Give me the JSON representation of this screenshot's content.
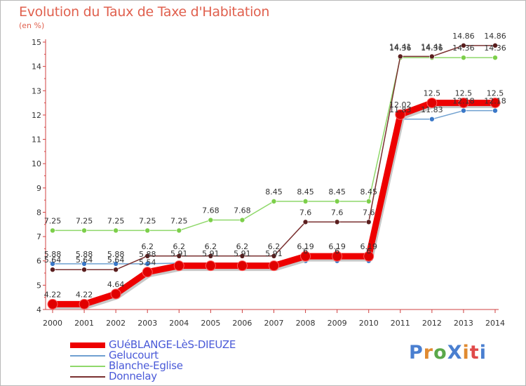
{
  "title": "Evolution du Taux de Taxe d'Habitation",
  "subtitle": "(en %)",
  "logo": {
    "text": "ProXiti",
    "colors": [
      "#4a7fd0",
      "#e08a30",
      "#5aa84a",
      "#4a7fd0",
      "#e08a30",
      "#e04a4a",
      "#4a7fd0"
    ]
  },
  "chart_data": {
    "type": "line",
    "title": "Evolution du Taux de Taxe d'Habitation",
    "ylabel": "(en %)",
    "xlabel": "",
    "x": [
      2000,
      2001,
      2002,
      2003,
      2004,
      2005,
      2006,
      2007,
      2008,
      2009,
      2010,
      2011,
      2012,
      2013,
      2014
    ],
    "ylim": [
      4,
      15
    ],
    "yticks": [
      4,
      5,
      6,
      7,
      8,
      9,
      10,
      11,
      12,
      13,
      14,
      15
    ],
    "grid": false,
    "legend_position": "bottom-left",
    "series": [
      {
        "name": "GUéBLANGE-LèS-DIEUZE",
        "color": "#ee0000",
        "values": [
          4.22,
          4.22,
          4.64,
          5.54,
          5.8,
          5.8,
          5.8,
          5.8,
          6.19,
          6.19,
          6.19,
          12.02,
          12.5,
          12.5,
          12.5
        ],
        "labels": [
          "4.22",
          "4.22",
          "4.64",
          "5.54",
          "",
          "",
          "",
          "",
          "6.19",
          "6.19",
          "6.19",
          "12.02",
          "12.5",
          "12.5",
          "12.5"
        ]
      },
      {
        "name": "Gelucourt",
        "color": "#6fa0d0",
        "values": [
          5.88,
          5.88,
          5.88,
          5.88,
          5.91,
          5.91,
          5.91,
          5.91,
          6,
          6,
          6,
          11.83,
          11.83,
          12.18,
          12.18
        ],
        "labels": [
          "5.88",
          "5.88",
          "5.88",
          "5.88",
          "5.91",
          "5.91",
          "5.91",
          "5.91",
          "6",
          "6",
          "6",
          "11.83",
          "11.83",
          "12.18",
          "12.18"
        ]
      },
      {
        "name": "Blanche-Eglise",
        "color": "#8fd86a",
        "values": [
          7.25,
          7.25,
          7.25,
          7.25,
          7.25,
          7.68,
          7.68,
          8.45,
          8.45,
          8.45,
          8.45,
          14.36,
          14.36,
          14.36,
          14.36
        ],
        "labels": [
          "7.25",
          "7.25",
          "7.25",
          "7.25",
          "7.25",
          "7.68",
          "7.68",
          "8.45",
          "8.45",
          "8.45",
          "8.45",
          "14.36",
          "14.36",
          "14.36",
          "14.36"
        ]
      },
      {
        "name": "Donnelay",
        "color": "#7a3030",
        "values": [
          5.64,
          5.64,
          5.64,
          6.2,
          6.2,
          6.2,
          6.2,
          6.2,
          7.6,
          7.6,
          7.6,
          14.41,
          14.41,
          14.86,
          14.86
        ],
        "labels": [
          "5.64",
          "5.64",
          "5.64",
          "6.2",
          "6.2",
          "6.2",
          "6.2",
          "6.2",
          "7.6",
          "7.6",
          "7.6",
          "14.41",
          "14.41",
          "14.86",
          "14.86"
        ]
      }
    ]
  }
}
